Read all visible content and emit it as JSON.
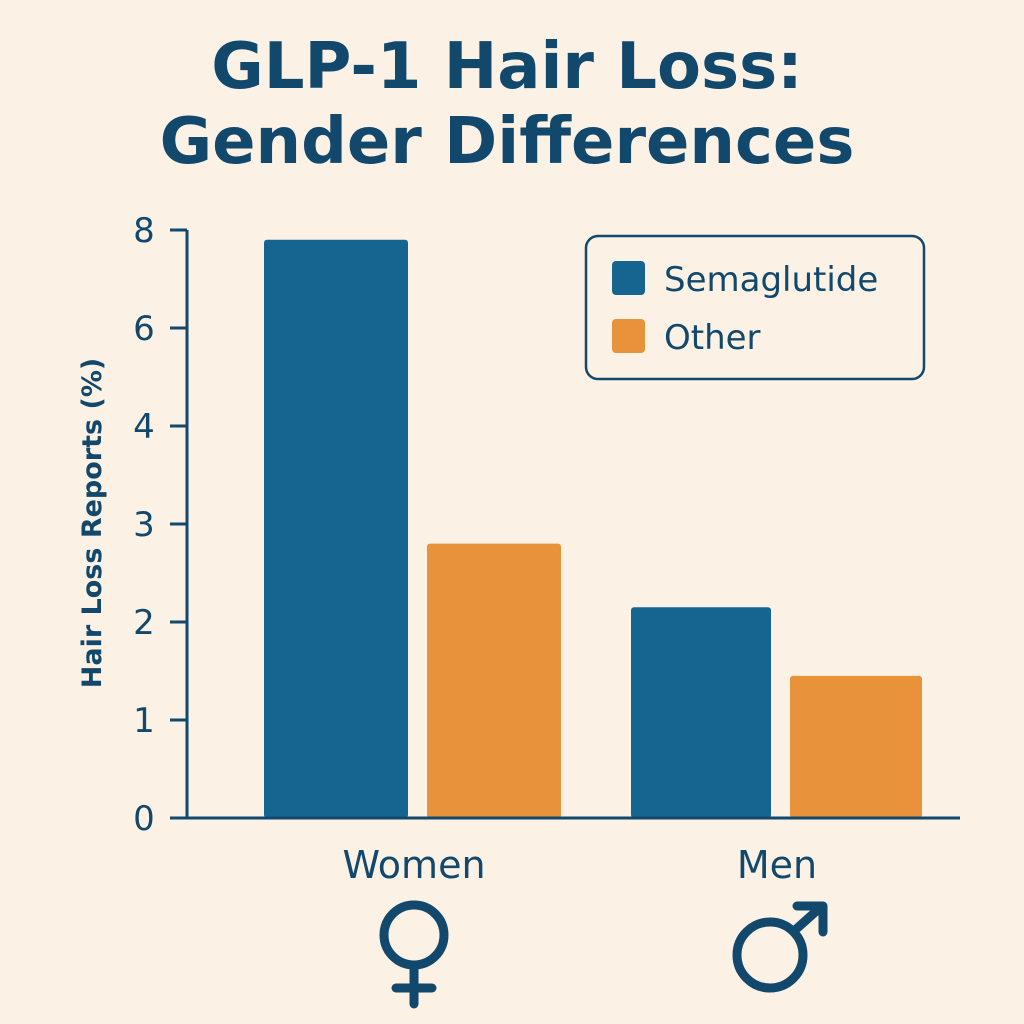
{
  "colors": {
    "background": "#FBF1E5",
    "text": "#12486B",
    "semaglutide": "#166590",
    "other": "#E8923A"
  },
  "chart_data": {
    "type": "bar",
    "title_lines": [
      "GLP-1 Hair Loss:",
      "Gender Differences"
    ],
    "ylabel": "Hair Loss Reports (%)",
    "xlabel": "",
    "categories": [
      "Women",
      "Men"
    ],
    "category_icons": [
      "female-symbol-icon",
      "male-symbol-icon"
    ],
    "y_ticks": [
      0,
      1,
      2,
      3,
      4,
      6,
      8
    ],
    "series": [
      {
        "name": "Semaglutide",
        "color": "#166590",
        "values": [
          7.8,
          2.15
        ]
      },
      {
        "name": "Other",
        "color": "#E8923A",
        "values": [
          2.8,
          1.45
        ]
      }
    ],
    "legend_position": "top-right",
    "grid": false
  }
}
